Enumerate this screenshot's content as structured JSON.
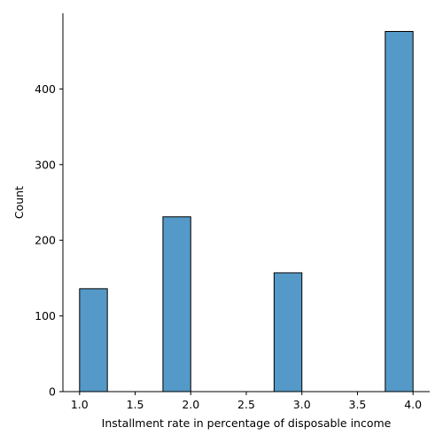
{
  "chart_data": {
    "type": "bar",
    "title": "",
    "xlabel": "Installment rate in percentage of disposable income",
    "ylabel": "Count",
    "xlim": [
      0.85,
      4.15
    ],
    "ylim": [
      0,
      500
    ],
    "xticks": [
      1.0,
      1.5,
      2.0,
      2.5,
      3.0,
      3.5,
      4.0
    ],
    "xtick_labels": [
      "1.0",
      "1.5",
      "2.0",
      "2.5",
      "3.0",
      "3.5",
      "4.0"
    ],
    "yticks": [
      0,
      100,
      200,
      300,
      400
    ],
    "ytick_labels": [
      "0",
      "100",
      "200",
      "300",
      "400"
    ],
    "grid": false,
    "bar_color": "#5599c8",
    "bar_edge_color": "#000000",
    "bars": [
      {
        "x0": 1.0,
        "x1": 1.25,
        "value": 136
      },
      {
        "x0": 1.75,
        "x1": 2.0,
        "value": 231
      },
      {
        "x0": 2.75,
        "x1": 3.0,
        "value": 157
      },
      {
        "x0": 3.75,
        "x1": 4.0,
        "value": 476
      }
    ]
  }
}
